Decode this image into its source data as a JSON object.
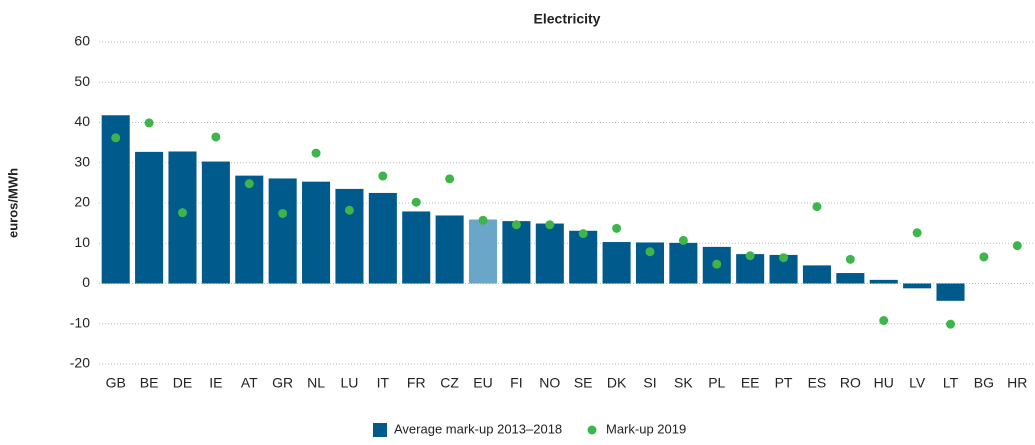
{
  "chart_data": {
    "type": "bar",
    "title": "Electricity",
    "y_label": "euros/MWh",
    "categories": [
      "GB",
      "BE",
      "DE",
      "IE",
      "AT",
      "GR",
      "NL",
      "LU",
      "IT",
      "FR",
      "CZ",
      "EU",
      "FI",
      "NO",
      "SE",
      "DK",
      "SI",
      "SK",
      "PL",
      "EE",
      "PT",
      "ES",
      "RO",
      "HU",
      "LV",
      "LT",
      "BG",
      "HR"
    ],
    "series": [
      {
        "name": "Average mark-up 2013–2018",
        "type": "bar",
        "color": "#005a8c",
        "colors": [
          "#005a8c",
          "#005a8c",
          "#005a8c",
          "#005a8c",
          "#005a8c",
          "#005a8c",
          "#005a8c",
          "#005a8c",
          "#005a8c",
          "#005a8c",
          "#005a8c",
          "#6aa6c8",
          "#005a8c",
          "#005a8c",
          "#005a8c",
          "#005a8c",
          "#005a8c",
          "#005a8c",
          "#005a8c",
          "#005a8c",
          "#005a8c",
          "#005a8c",
          "#005a8c",
          "#005a8c",
          "#005a8c",
          "#005a8c",
          "#005a8c",
          "#005a8c"
        ],
        "values": [
          41.8,
          32.7,
          32.8,
          30.3,
          26.8,
          26.1,
          25.3,
          23.5,
          22.5,
          17.9,
          16.9,
          15.9,
          15.5,
          14.9,
          13.1,
          10.3,
          10.2,
          10.1,
          9.1,
          7.3,
          7.1,
          4.5,
          2.6,
          0.9,
          -1.2,
          -4.3,
          null,
          null
        ]
      },
      {
        "name": "Mark-up 2019",
        "type": "scatter",
        "color": "#3db54a",
        "values": [
          36.2,
          39.9,
          17.6,
          36.4,
          24.8,
          17.4,
          32.4,
          18.2,
          26.7,
          20.2,
          26,
          15.7,
          14.6,
          14.6,
          12.4,
          13.7,
          7.9,
          10.7,
          4.8,
          6.9,
          6.4,
          19.1,
          6,
          -9.2,
          12.6,
          -10.1,
          6.6,
          9.4
        ]
      }
    ],
    "ylim": [
      -20,
      60
    ],
    "yticks": [
      -20,
      -10,
      0,
      10,
      20,
      30,
      40,
      50,
      60
    ],
    "grid": true,
    "legend": "bottom"
  }
}
